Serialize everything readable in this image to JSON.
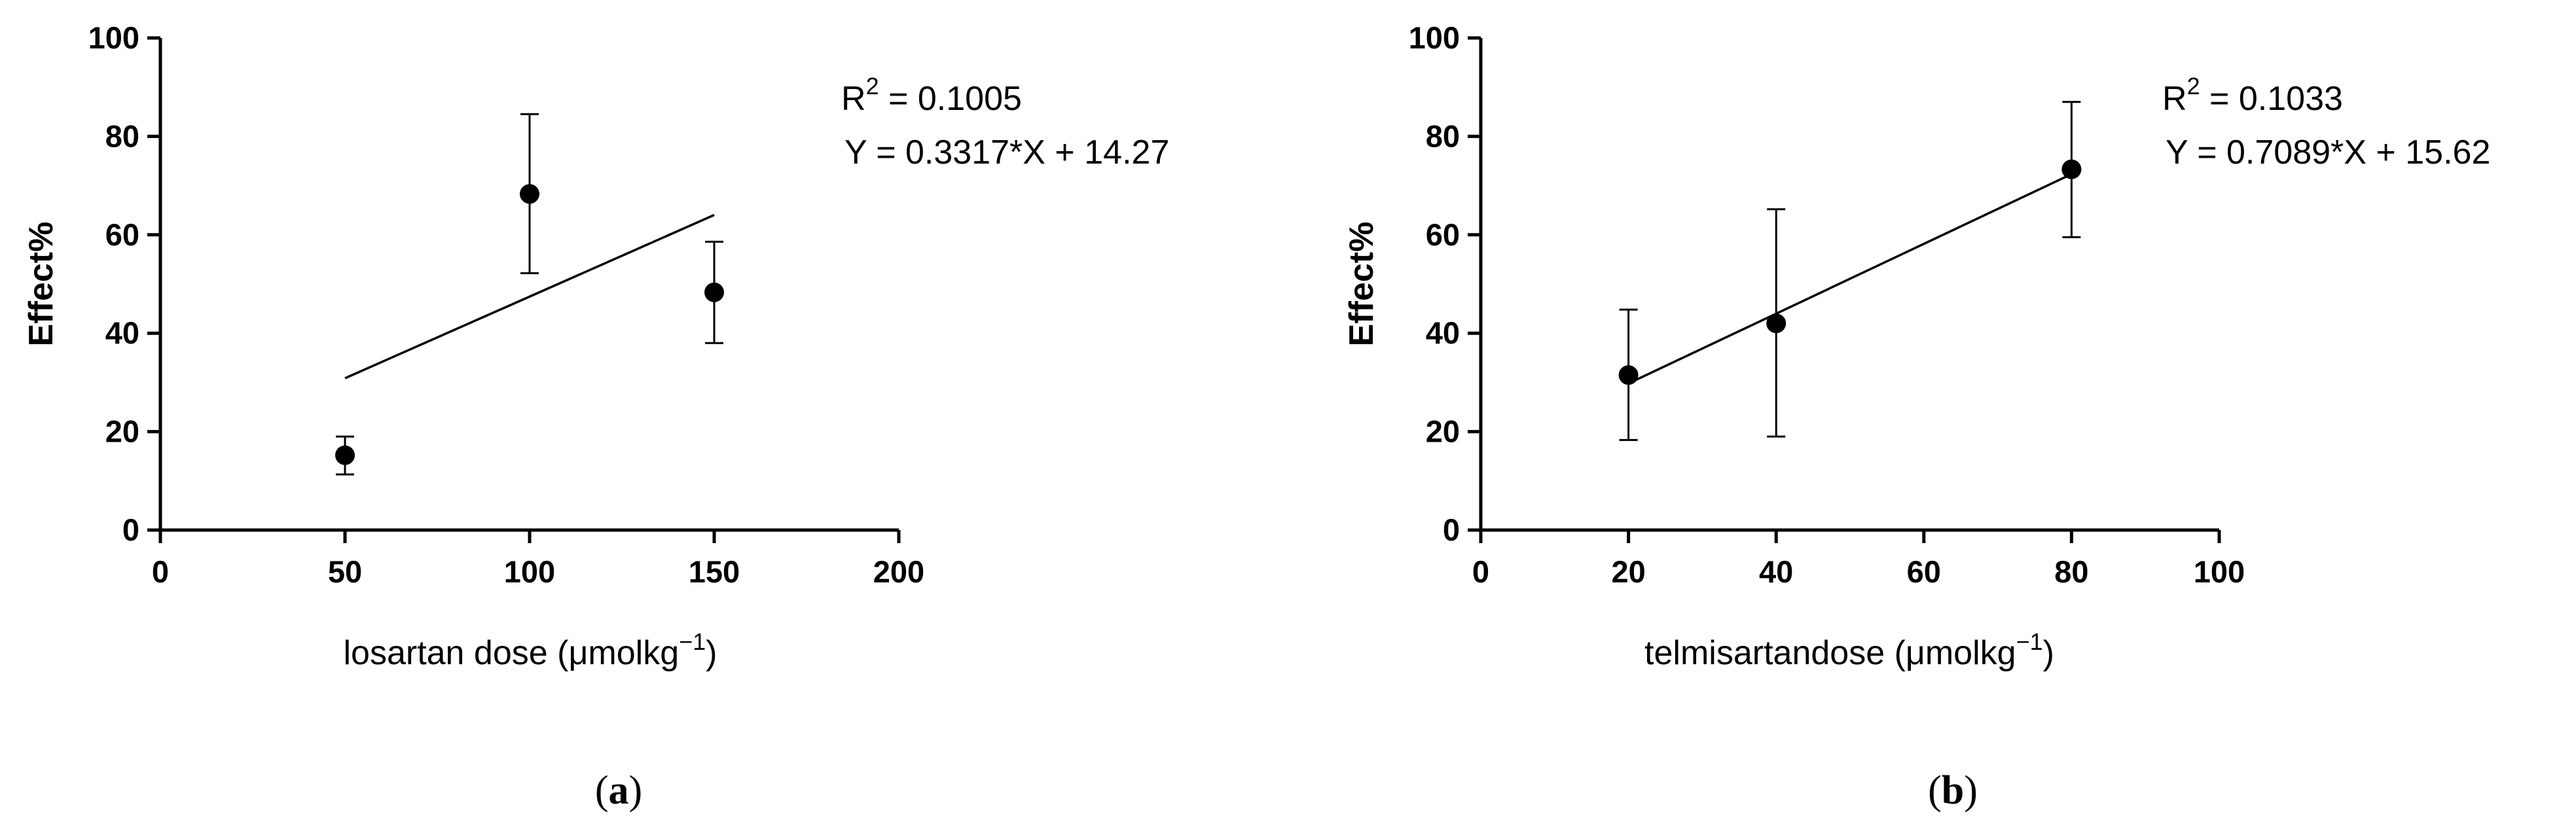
{
  "chart_data": [
    {
      "type": "scatter",
      "caption_letter": "a",
      "xlabel": "losartan dose (μmolkg",
      "xlabel_sup": "−1",
      "xlabel_tail": ")",
      "ylabel": "Effect%",
      "xlim": [
        0,
        200
      ],
      "ylim": [
        0,
        100
      ],
      "xticks": [
        0,
        50,
        100,
        150,
        200
      ],
      "yticks": [
        0,
        20,
        40,
        60,
        80,
        100
      ],
      "points": [
        {
          "x": 50,
          "y": 15.2,
          "err_low": 11.3,
          "err_high": 19.0
        },
        {
          "x": 100,
          "y": 68.3,
          "err_low": 52.2,
          "err_high": 84.5
        },
        {
          "x": 150,
          "y": 48.3,
          "err_low": 38.0,
          "err_high": 58.6
        }
      ],
      "fit": {
        "slope": 0.3317,
        "intercept": 14.27,
        "x_range": [
          50,
          150
        ]
      },
      "r2_label": "R",
      "r2_sup": "2",
      "r2_value": " = 0.1005",
      "equation": "Y = 0.3317*X + 14.27",
      "grid": false
    },
    {
      "type": "scatter",
      "caption_letter": "b",
      "xlabel": "telmisartandose (μmolkg",
      "xlabel_sup": "−1",
      "xlabel_tail": ")",
      "ylabel": "Effect%",
      "xlim": [
        0,
        100
      ],
      "ylim": [
        0,
        100
      ],
      "xticks": [
        0,
        20,
        40,
        60,
        80,
        100
      ],
      "yticks": [
        0,
        20,
        40,
        60,
        80,
        100
      ],
      "points": [
        {
          "x": 20,
          "y": 31.5,
          "err_low": 18.3,
          "err_high": 44.8
        },
        {
          "x": 40,
          "y": 42.0,
          "err_low": 19.0,
          "err_high": 65.2
        },
        {
          "x": 80,
          "y": 73.3,
          "err_low": 59.5,
          "err_high": 87.0
        }
      ],
      "fit": {
        "slope": 0.7089,
        "intercept": 15.62,
        "x_range": [
          20,
          80
        ]
      },
      "r2_label": "R",
      "r2_sup": "2",
      "r2_value": " = 0.1033",
      "equation": "Y = 0.7089*X + 15.62",
      "grid": false
    }
  ]
}
